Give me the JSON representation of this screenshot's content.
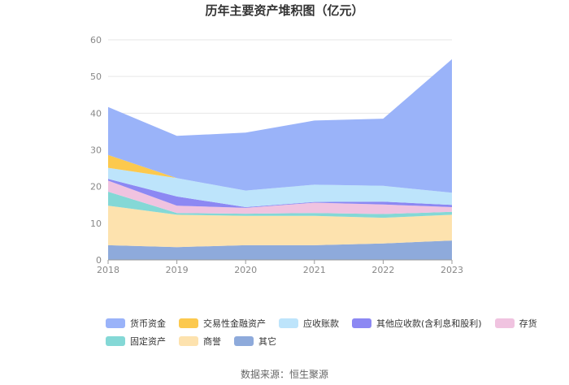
{
  "chart_data": {
    "type": "area",
    "stacked": true,
    "title": "历年主要资产堆积图（亿元）",
    "x": [
      "2018",
      "2019",
      "2020",
      "2021",
      "2022",
      "2023"
    ],
    "ylim": [
      0,
      60
    ],
    "yticks": [
      "0",
      "10",
      "20",
      "30",
      "40",
      "50",
      "60"
    ],
    "grid": true,
    "legend_position": "bottom",
    "series": [
      {
        "name": "其它",
        "color": "#8EAADB",
        "values": [
          4.0,
          3.5,
          4.0,
          4.0,
          4.5,
          5.3
        ]
      },
      {
        "name": "商誉",
        "color": "#FDE2AE",
        "values": [
          10.8,
          8.8,
          8.0,
          8.0,
          7.0,
          7.0
        ]
      },
      {
        "name": "固定资产",
        "color": "#84D8D6",
        "values": [
          3.8,
          0.5,
          0.6,
          0.8,
          1.0,
          0.8
        ]
      },
      {
        "name": "存货",
        "color": "#F0C3E0",
        "values": [
          3.0,
          2.0,
          1.6,
          2.8,
          2.6,
          1.3
        ]
      },
      {
        "name": "其他应收款(含利息和股利)",
        "color": "#8C88F3",
        "values": [
          0.5,
          2.5,
          0.2,
          0.2,
          0.8,
          0.6
        ]
      },
      {
        "name": "应收账款",
        "color": "#BDE4FB",
        "values": [
          3.0,
          5.0,
          4.5,
          4.7,
          4.3,
          3.3
        ]
      },
      {
        "name": "交易性金融资产",
        "color": "#FCC94E",
        "values": [
          3.5,
          0.0,
          0.0,
          0.0,
          0.0,
          0.0
        ]
      },
      {
        "name": "货币资金",
        "color": "#9AB3F9",
        "values": [
          13.1,
          11.5,
          15.8,
          17.5,
          18.3,
          36.4
        ]
      }
    ]
  },
  "legend": {
    "rows": [
      [
        {
          "label": "货币资金",
          "color": "#9AB3F9"
        },
        {
          "label": "交易性金融资产",
          "color": "#FCC94E"
        },
        {
          "label": "应收账款",
          "color": "#BDE4FB"
        },
        {
          "label": "其他应收款(含利息和股利)",
          "color": "#8C88F3"
        },
        {
          "label": "存货",
          "color": "#F0C3E0"
        }
      ],
      [
        {
          "label": "固定资产",
          "color": "#84D8D6"
        },
        {
          "label": "商誉",
          "color": "#FDE2AE"
        },
        {
          "label": "其它",
          "color": "#8EAADB"
        }
      ]
    ]
  },
  "footer": {
    "source": "数据来源：恒生聚源"
  }
}
